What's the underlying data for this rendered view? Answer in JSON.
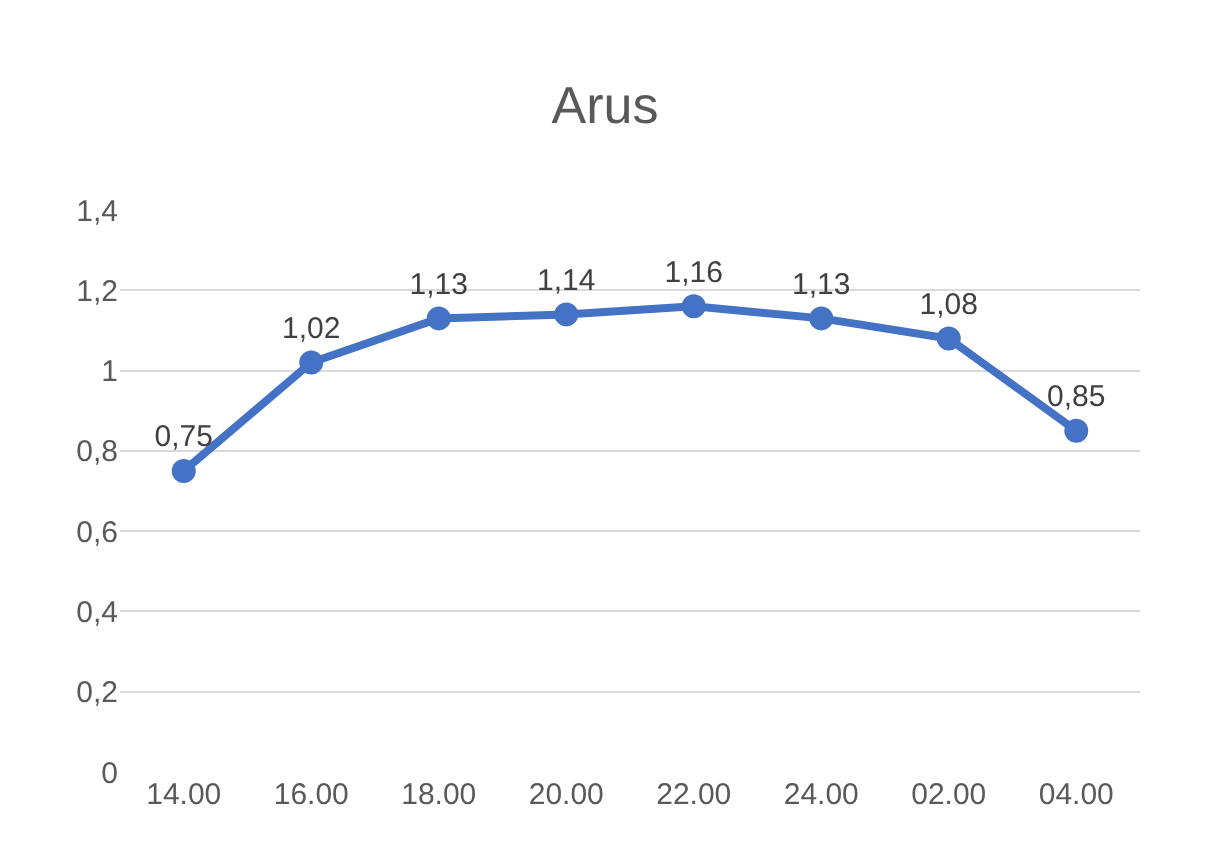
{
  "chart_data": {
    "type": "line",
    "title": "Arus",
    "categories": [
      "14.00",
      "16.00",
      "18.00",
      "20.00",
      "22.00",
      "24.00",
      "02.00",
      "04.00"
    ],
    "series": [
      {
        "color": "#4472c4",
        "values": [
          0.75,
          1.02,
          1.13,
          1.14,
          1.16,
          1.13,
          1.08,
          0.85
        ],
        "value_labels": [
          "0,75",
          "1,02",
          "1,13",
          "1,14",
          "1,16",
          "1,13",
          "1,08",
          "0,85"
        ]
      }
    ],
    "ylim": [
      0,
      1.4
    ],
    "yticks": [
      {
        "value": 0,
        "label": "0"
      },
      {
        "value": 0.2,
        "label": "0,2"
      },
      {
        "value": 0.4,
        "label": "0,4"
      },
      {
        "value": 0.6,
        "label": "0,6"
      },
      {
        "value": 0.8,
        "label": "0,8"
      },
      {
        "value": 1,
        "label": "1"
      },
      {
        "value": 1.2,
        "label": "1,2"
      },
      {
        "value": 1.4,
        "label": "1,4"
      }
    ],
    "grid": "y",
    "marker": "circle",
    "line_style": "solid",
    "legend": false
  }
}
